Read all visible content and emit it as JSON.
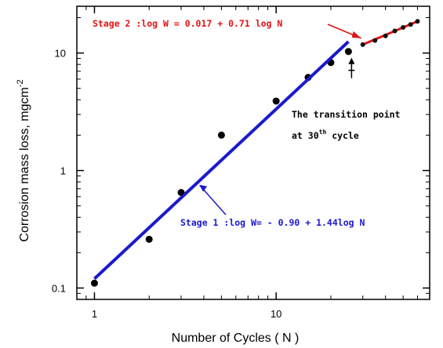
{
  "chart_data": {
    "type": "scatter",
    "x_scale": "log",
    "y_scale": "log",
    "xlim": [
      0.8,
      70
    ],
    "ylim": [
      0.08,
      25
    ],
    "xlabel": "Number of Cycles ( N )",
    "ylabel": "Corrosion mass loss, mgcm",
    "ylabel_superscript": "-2",
    "x_ticks": [
      {
        "value": 1,
        "label": "1"
      },
      {
        "value": 10,
        "label": "10"
      }
    ],
    "y_ticks": [
      {
        "value": 0.1,
        "label": "0.1"
      },
      {
        "value": 1,
        "label": "1"
      },
      {
        "value": 10,
        "label": "10"
      }
    ],
    "series": [
      {
        "kind": "points",
        "color": "#000000",
        "x": [
          1,
          2,
          3,
          5,
          10,
          15,
          20,
          25
        ],
        "y": [
          0.11,
          0.26,
          0.65,
          2.0,
          3.9,
          6.2,
          8.3,
          10.3
        ]
      },
      {
        "kind": "fit",
        "color": "#1a1acc",
        "x": [
          1,
          25
        ],
        "y": [
          0.12,
          12.5
        ]
      },
      {
        "kind": "points_fit",
        "color": "#e01414",
        "x": [
          30,
          35,
          40,
          45,
          50,
          55,
          60
        ],
        "y": [
          11.8,
          12.8,
          14.0,
          15.4,
          16.5,
          17.5,
          18.6
        ]
      }
    ],
    "annotations": {
      "stage2": {
        "text": "Stage 2 :log W = 0.017 + 0.71 log N",
        "color": "#e01414"
      },
      "stage1": {
        "text": "Stage 1 :log W= - 0.90 + 1.44log N",
        "color": "#1a1acc"
      },
      "transition_line1": "The transition point",
      "transition_line2_pre": "at 30",
      "transition_line2_sup": "th",
      "transition_line2_post": " cycle"
    },
    "colors": {
      "axis": "#000000",
      "stage1": "#1a1acc",
      "stage2": "#e01414",
      "points": "#000000"
    }
  }
}
